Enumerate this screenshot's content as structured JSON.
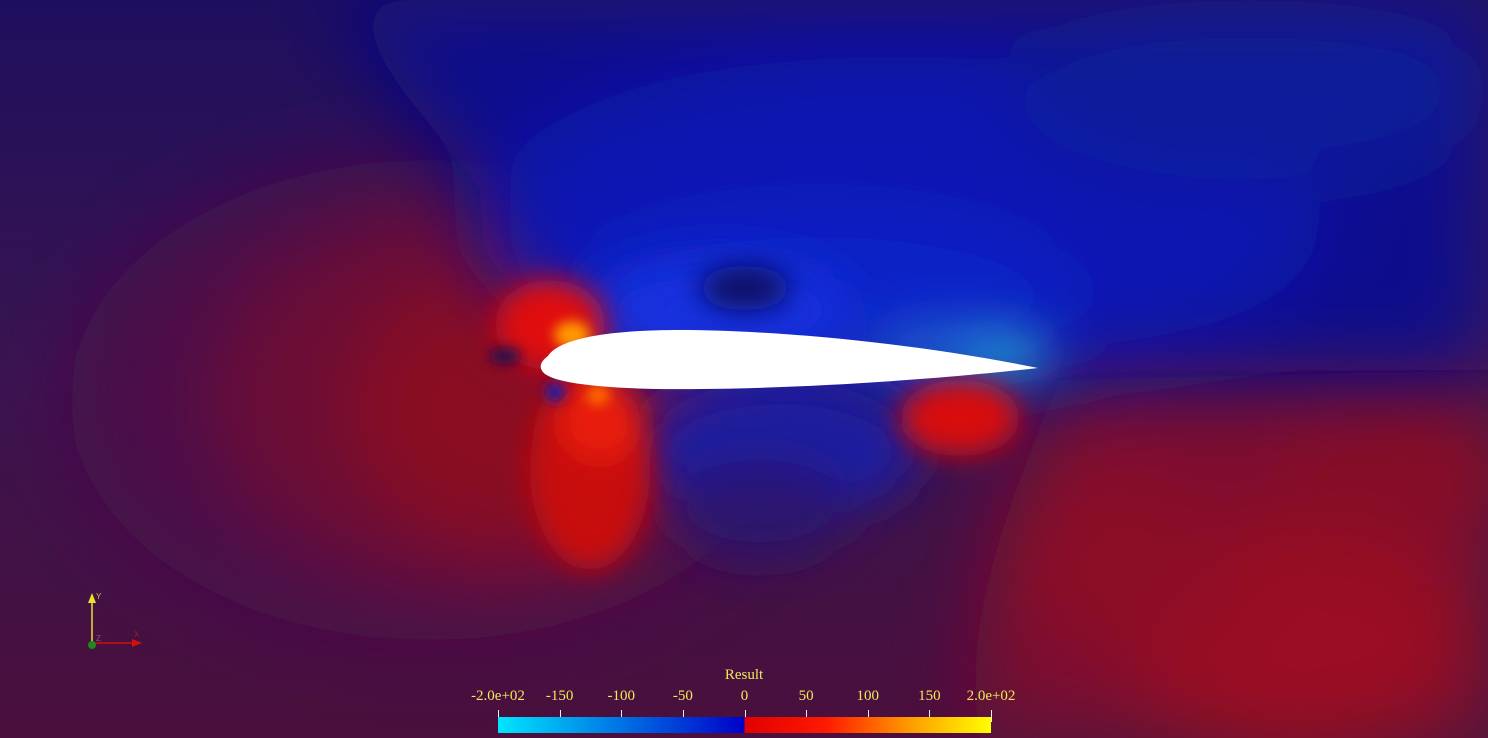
{
  "colorbar": {
    "title": "Result",
    "tick_labels": [
      "-2.0e+02",
      "-150",
      "-100",
      "-50",
      "0",
      "50",
      "100",
      "150",
      "2.0e+02"
    ],
    "tick_values": [
      -200,
      -150,
      -100,
      -50,
      0,
      50,
      100,
      150,
      200
    ],
    "range": [
      -200,
      200
    ],
    "negative_colors": [
      "#00e5ff",
      "#0000c8"
    ],
    "positive_colors": [
      "#e00000",
      "#ff1a00",
      "#ff9a00",
      "#ffff00"
    ]
  },
  "colors": {
    "background": "#2a1560",
    "upper_field": "#0a0a8c",
    "lower_field": "#6e0a2c",
    "airfoil": "#ffffff",
    "legend_text": "#f2e85a"
  },
  "icons": {
    "orientation_axes": "axes-triad-icon"
  }
}
